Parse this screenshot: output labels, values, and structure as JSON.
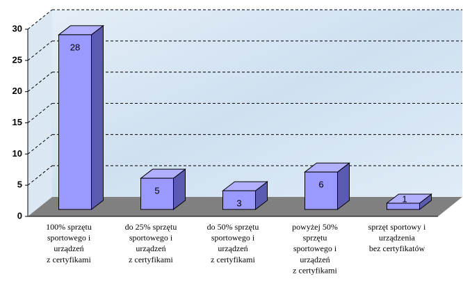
{
  "chart_data": {
    "type": "bar",
    "categories": [
      "100% sprzętu\nsportowego i\nurządzeń\nz certyfikami",
      "do 25% sprzętu\nsportowego i\nurządzeń\nz certyfikami",
      "do 50% sprzętu\nsportowego i\nurządzeń\nz certyfikami",
      "powyżej 50%\nsprzętu\nsportowego i\nurządzeń\nz certyfikami",
      "sprzęt sportowy i\nurządzenia\nbez certyfikatów"
    ],
    "values": [
      28,
      5,
      3,
      6,
      1
    ],
    "color": "#9999ff",
    "ylim": [
      0,
      30
    ],
    "yticks": [
      0,
      5,
      10,
      15,
      20,
      25,
      30
    ],
    "grid": true
  }
}
